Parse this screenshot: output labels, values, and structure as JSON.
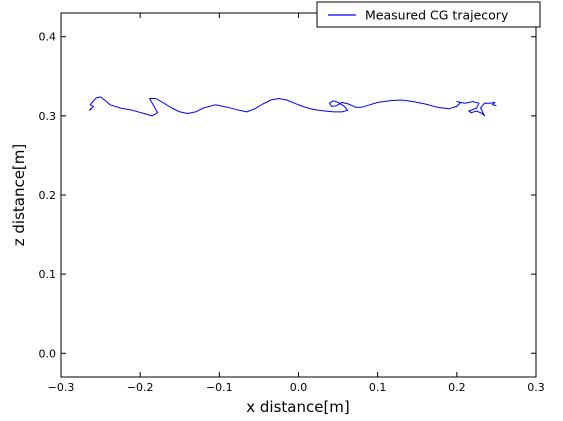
{
  "chart_data": {
    "type": "line",
    "title": "",
    "xlabel": "x distance[m]",
    "ylabel": "z distance[m]",
    "xlim": [
      -0.3,
      0.3
    ],
    "ylim": [
      -0.03,
      0.43
    ],
    "xticks": [
      -0.3,
      -0.2,
      -0.1,
      0.0,
      0.1,
      0.2,
      0.3
    ],
    "xtick_labels": [
      "−0.3",
      "−0.2",
      "−0.1",
      "0.0",
      "0.1",
      "0.2",
      "0.3"
    ],
    "yticks": [
      0.0,
      0.1,
      0.2,
      0.3,
      0.4
    ],
    "ytick_labels": [
      "0.0",
      "0.1",
      "0.2",
      "0.3",
      "0.4"
    ],
    "grid": false,
    "legend": {
      "placement": "top-right"
    },
    "series": [
      {
        "name": "Measured CG trajecory",
        "color": "#0000ff",
        "x": [
          -0.262,
          -0.264,
          -0.259,
          -0.263,
          -0.26,
          -0.255,
          -0.25,
          -0.245,
          -0.238,
          -0.225,
          -0.21,
          -0.195,
          -0.185,
          -0.178,
          -0.183,
          -0.188,
          -0.18,
          -0.17,
          -0.16,
          -0.15,
          -0.14,
          -0.13,
          -0.12,
          -0.105,
          -0.09,
          -0.075,
          -0.065,
          -0.055,
          -0.045,
          -0.035,
          -0.025,
          -0.015,
          -0.005,
          0.005,
          0.015,
          0.025,
          0.035,
          0.045,
          0.055,
          0.062,
          0.058,
          0.05,
          0.044,
          0.039,
          0.042,
          0.048,
          0.055,
          0.063,
          0.072,
          0.08,
          0.09,
          0.1,
          0.115,
          0.13,
          0.145,
          0.16,
          0.175,
          0.19,
          0.2,
          0.205,
          0.2,
          0.21,
          0.22,
          0.228,
          0.225,
          0.215,
          0.218,
          0.225,
          0.232,
          0.235,
          0.23,
          0.235,
          0.242,
          0.248,
          0.245,
          0.25
        ],
        "y": [
          0.31,
          0.307,
          0.312,
          0.314,
          0.318,
          0.323,
          0.324,
          0.32,
          0.314,
          0.31,
          0.307,
          0.303,
          0.3,
          0.304,
          0.313,
          0.322,
          0.322,
          0.316,
          0.31,
          0.305,
          0.303,
          0.305,
          0.31,
          0.314,
          0.311,
          0.307,
          0.305,
          0.309,
          0.315,
          0.32,
          0.322,
          0.32,
          0.316,
          0.312,
          0.309,
          0.307,
          0.306,
          0.305,
          0.305,
          0.307,
          0.312,
          0.317,
          0.319,
          0.316,
          0.312,
          0.313,
          0.317,
          0.315,
          0.311,
          0.311,
          0.314,
          0.317,
          0.319,
          0.32,
          0.318,
          0.315,
          0.311,
          0.309,
          0.312,
          0.317,
          0.318,
          0.316,
          0.318,
          0.316,
          0.31,
          0.306,
          0.304,
          0.306,
          0.303,
          0.3,
          0.31,
          0.316,
          0.316,
          0.317,
          0.314,
          0.313
        ]
      }
    ]
  }
}
